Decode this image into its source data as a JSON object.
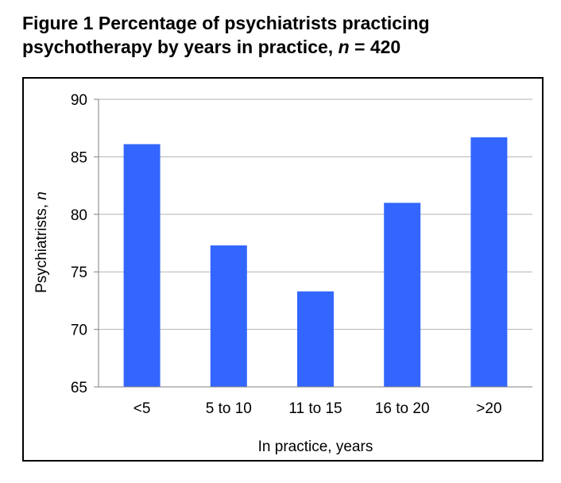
{
  "figure": {
    "title_main": "Figure 1  Percentage of psychiatrists practicing",
    "title_line2_prefix": "psychotherapy by years in practice, ",
    "title_n": "n",
    "title_suffix": " = 420"
  },
  "chart_data": {
    "type": "bar",
    "categories": [
      "<5",
      "5 to 10",
      "11 to 15",
      "16 to 20",
      ">20"
    ],
    "values": [
      86.1,
      77.3,
      73.3,
      81.0,
      86.7
    ],
    "xlabel": "In practice, years",
    "ylabel_prefix": "Psychiatrists, ",
    "ylabel_n": "n",
    "ylim": [
      65,
      90
    ],
    "yticks": [
      65,
      70,
      75,
      80,
      85,
      90
    ],
    "grid": true,
    "bar_color": "#3366ff",
    "grid_color": "#b3b3b3"
  }
}
